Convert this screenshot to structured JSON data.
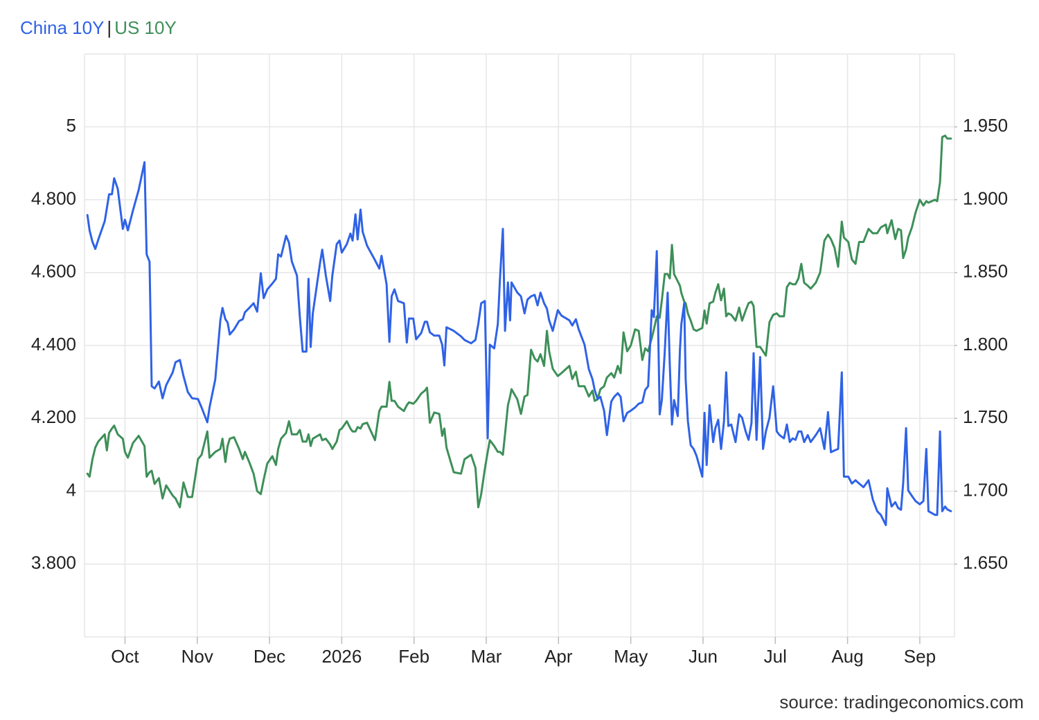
{
  "chart_data": {
    "type": "line",
    "source": "source: tradingeconomics.com",
    "legend_separator": "|",
    "xlim": [
      0.44,
      12.48
    ],
    "xticks": [
      {
        "value": 1,
        "label": "Oct"
      },
      {
        "value": 2,
        "label": "Nov"
      },
      {
        "value": 3,
        "label": "Dec"
      },
      {
        "value": 4,
        "label": "2026"
      },
      {
        "value": 5,
        "label": "Feb"
      },
      {
        "value": 6,
        "label": "Mar"
      },
      {
        "value": 7,
        "label": "Apr"
      },
      {
        "value": 8,
        "label": "May"
      },
      {
        "value": 9,
        "label": "Jun"
      },
      {
        "value": 10,
        "label": "Jul"
      },
      {
        "value": 11,
        "label": "Aug"
      },
      {
        "value": 12,
        "label": "Sep"
      }
    ],
    "ylim": [
      3.6,
      5.2
    ],
    "yticks": [
      {
        "value": 3.8,
        "label": "3.800"
      },
      4,
      {
        "value": 4.2,
        "label": "4.200"
      },
      {
        "value": 4.4,
        "label": "4.400"
      },
      {
        "value": 4.6,
        "label": "4.600"
      },
      {
        "value": 4.8,
        "label": "4.800"
      },
      5
    ],
    "y2lim": [
      1.6,
      2.0
    ],
    "y2ticks": [
      {
        "value": 1.65,
        "label": "1.650"
      },
      {
        "value": 1.7,
        "label": "1.700"
      },
      {
        "value": 1.75,
        "label": "1.750"
      },
      {
        "value": 1.8,
        "label": "1.800"
      },
      {
        "value": 1.85,
        "label": "1.850"
      },
      {
        "value": 1.9,
        "label": "1.900"
      },
      {
        "value": 1.95,
        "label": "1.950"
      }
    ],
    "grid": true,
    "x": [
      0.48,
      0.51,
      0.55,
      0.59,
      0.63,
      0.72,
      0.75,
      0.78,
      0.82,
      0.85,
      0.9,
      0.97,
      1.0,
      1.04,
      1.11,
      1.19,
      1.27,
      1.3,
      1.34,
      1.37,
      1.41,
      1.47,
      1.52,
      1.57,
      1.66,
      1.7,
      1.76,
      1.81,
      1.87,
      1.93,
      2.01,
      2.06,
      2.14,
      2.17,
      2.25,
      2.32,
      2.35,
      2.39,
      2.42,
      2.45,
      2.51,
      2.58,
      2.63,
      2.66,
      2.72,
      2.78,
      2.83,
      2.88,
      2.92,
      2.97,
      3.04,
      3.09,
      3.12,
      3.16,
      3.23,
      3.27,
      3.31,
      3.38,
      3.42,
      3.46,
      3.51,
      3.54,
      3.57,
      3.6,
      3.7,
      3.73,
      3.78,
      3.84,
      3.87,
      3.93,
      3.97,
      4.0,
      4.07,
      4.12,
      4.15,
      4.19,
      4.22,
      4.26,
      4.29,
      4.35,
      4.46,
      4.52,
      4.55,
      4.62,
      4.66,
      4.69,
      4.73,
      4.78,
      4.86,
      4.9,
      4.93,
      4.99,
      5.03,
      5.1,
      5.15,
      5.18,
      5.22,
      5.28,
      5.35,
      5.39,
      5.42,
      5.45,
      5.55,
      5.65,
      5.7,
      5.79,
      5.85,
      5.89,
      5.93,
      5.98,
      6.02,
      6.05,
      6.11,
      6.16,
      6.19,
      6.23,
      6.26,
      6.3,
      6.33,
      6.35,
      6.43,
      6.48,
      6.53,
      6.57,
      6.62,
      6.67,
      6.71,
      6.75,
      6.8,
      6.84,
      6.87,
      6.92,
      6.99,
      7.04,
      7.15,
      7.19,
      7.24,
      7.28,
      7.36,
      7.42,
      7.47,
      7.5,
      7.54,
      7.58,
      7.63,
      7.67,
      7.73,
      7.77,
      7.82,
      7.86,
      7.9,
      7.95,
      8.0,
      8.06,
      8.11,
      8.16,
      8.2,
      8.24,
      8.29,
      8.32,
      8.36,
      8.4,
      8.43,
      8.47,
      8.51,
      8.54,
      8.57,
      8.6,
      8.65,
      8.68,
      8.7,
      8.74,
      8.76,
      8.79,
      8.83,
      8.87,
      8.91,
      8.99,
      9.02,
      9.05,
      9.09,
      9.14,
      9.17,
      9.21,
      9.25,
      9.29,
      9.32,
      9.35,
      9.39,
      9.45,
      9.5,
      9.54,
      9.59,
      9.63,
      9.67,
      9.7,
      9.74,
      9.79,
      9.83,
      9.87,
      9.92,
      9.97,
      10.02,
      10.06,
      10.12,
      10.16,
      10.2,
      10.24,
      10.28,
      10.32,
      10.36,
      10.4,
      10.45,
      10.49,
      10.56,
      10.62,
      10.68,
      10.73,
      10.77,
      10.82,
      10.87,
      10.92,
      10.95,
      11.01,
      11.06,
      11.11,
      11.16,
      11.22,
      11.29,
      11.35,
      11.41,
      11.46,
      11.53,
      11.55,
      11.61,
      11.66,
      11.7,
      11.74,
      11.77,
      11.81,
      11.84,
      11.89,
      11.94,
      12.0,
      12.05,
      12.09,
      12.12,
      12.21,
      12.24,
      12.28,
      12.31,
      12.35,
      12.38,
      12.43
    ],
    "series": [
      {
        "name": "China 10Y",
        "color": "#2f62e6",
        "axis": "y",
        "values": [
          4.758,
          4.716,
          4.684,
          4.665,
          4.69,
          4.741,
          4.777,
          4.815,
          4.815,
          4.859,
          4.83,
          4.72,
          4.745,
          4.716,
          4.77,
          4.827,
          4.903,
          4.65,
          4.63,
          4.288,
          4.282,
          4.301,
          4.255,
          4.291,
          4.326,
          4.354,
          4.36,
          4.316,
          4.272,
          4.255,
          4.253,
          4.23,
          4.189,
          4.23,
          4.307,
          4.469,
          4.503,
          4.472,
          4.463,
          4.43,
          4.444,
          4.467,
          4.472,
          4.491,
          4.503,
          4.516,
          4.493,
          4.598,
          4.53,
          4.554,
          4.57,
          4.583,
          4.65,
          4.644,
          4.701,
          4.682,
          4.63,
          4.592,
          4.478,
          4.383,
          4.383,
          4.583,
          4.396,
          4.488,
          4.627,
          4.663,
          4.592,
          4.522,
          4.592,
          4.678,
          4.688,
          4.655,
          4.678,
          4.707,
          4.688,
          4.76,
          4.691,
          4.773,
          4.712,
          4.674,
          4.634,
          4.611,
          4.646,
          4.568,
          4.41,
          4.535,
          4.554,
          4.522,
          4.516,
          4.408,
          4.474,
          4.474,
          4.417,
          4.434,
          4.465,
          4.465,
          4.436,
          4.427,
          4.427,
          4.402,
          4.345,
          4.45,
          4.44,
          4.425,
          4.415,
          4.406,
          4.415,
          4.459,
          4.516,
          4.522,
          4.145,
          4.402,
          4.392,
          4.459,
          4.583,
          4.72,
          4.44,
          4.573,
          4.469,
          4.573,
          4.545,
          4.535,
          4.488,
          4.526,
          4.535,
          4.539,
          4.51,
          4.545,
          4.516,
          4.501,
          4.469,
          4.44,
          4.497,
          4.482,
          4.469,
          4.455,
          4.472,
          4.444,
          4.402,
          4.335,
          4.307,
          4.278,
          4.253,
          4.259,
          4.221,
          4.154,
          4.246,
          4.259,
          4.269,
          4.259,
          4.192,
          4.215,
          4.221,
          4.23,
          4.24,
          4.244,
          4.278,
          4.288,
          4.497,
          4.478,
          4.659,
          4.211,
          4.25,
          4.383,
          4.545,
          4.345,
          4.183,
          4.25,
          4.206,
          4.387,
          4.459,
          4.516,
          4.307,
          4.192,
          4.126,
          4.116,
          4.097,
          4.04,
          4.215,
          4.072,
          4.236,
          4.135,
          4.173,
          4.196,
          4.116,
          4.192,
          4.326,
          4.179,
          4.183,
          4.135,
          4.211,
          4.202,
          4.164,
          4.141,
          4.187,
          4.379,
          4.141,
          4.368,
          4.116,
          4.164,
          4.202,
          4.288,
          4.164,
          4.154,
          4.145,
          4.183,
          4.135,
          4.145,
          4.141,
          4.164,
          4.164,
          4.135,
          4.154,
          4.135,
          4.154,
          4.173,
          4.116,
          4.217,
          4.107,
          4.112,
          4.116,
          4.326,
          4.04,
          4.04,
          4.021,
          4.03,
          4.021,
          4.011,
          4.03,
          3.977,
          3.945,
          3.935,
          3.907,
          4.008,
          3.958,
          3.97,
          3.954,
          3.949,
          4.021,
          4.173,
          4.002,
          3.987,
          3.973,
          3.964,
          3.973,
          4.116,
          3.945,
          3.935,
          3.935,
          4.164,
          3.945,
          3.958,
          3.95,
          3.945
        ]
      },
      {
        "name": "US 10Y",
        "color": "#3d8f58",
        "axis": "y2",
        "values": [
          1.712,
          1.71,
          1.722,
          1.73,
          1.734,
          1.739,
          1.728,
          1.74,
          1.743,
          1.745,
          1.739,
          1.736,
          1.727,
          1.723,
          1.733,
          1.738,
          1.731,
          1.71,
          1.713,
          1.714,
          1.705,
          1.709,
          1.695,
          1.704,
          1.697,
          1.695,
          1.689,
          1.706,
          1.696,
          1.696,
          1.722,
          1.725,
          1.741,
          1.723,
          1.727,
          1.729,
          1.736,
          1.72,
          1.731,
          1.736,
          1.737,
          1.729,
          1.722,
          1.727,
          1.72,
          1.712,
          1.7,
          1.698,
          1.708,
          1.719,
          1.724,
          1.718,
          1.729,
          1.736,
          1.74,
          1.748,
          1.739,
          1.739,
          1.742,
          1.734,
          1.734,
          1.739,
          1.731,
          1.736,
          1.739,
          1.735,
          1.736,
          1.732,
          1.729,
          1.734,
          1.742,
          1.743,
          1.748,
          1.743,
          1.741,
          1.741,
          1.744,
          1.743,
          1.746,
          1.747,
          1.735,
          1.755,
          1.758,
          1.758,
          1.775,
          1.762,
          1.762,
          1.758,
          1.755,
          1.759,
          1.761,
          1.76,
          1.762,
          1.767,
          1.769,
          1.771,
          1.747,
          1.754,
          1.753,
          1.738,
          1.743,
          1.73,
          1.713,
          1.712,
          1.722,
          1.725,
          1.716,
          1.689,
          1.698,
          1.715,
          1.727,
          1.735,
          1.731,
          1.727,
          1.727,
          1.725,
          1.739,
          1.759,
          1.765,
          1.77,
          1.763,
          1.753,
          1.765,
          1.766,
          1.797,
          1.791,
          1.789,
          1.794,
          1.786,
          1.81,
          1.796,
          1.784,
          1.779,
          1.781,
          1.786,
          1.777,
          1.782,
          1.772,
          1.772,
          1.765,
          1.769,
          1.762,
          1.763,
          1.77,
          1.772,
          1.778,
          1.781,
          1.778,
          1.786,
          1.781,
          1.809,
          1.796,
          1.8,
          1.811,
          1.81,
          1.79,
          1.798,
          1.796,
          1.805,
          1.811,
          1.82,
          1.819,
          1.831,
          1.849,
          1.849,
          1.846,
          1.869,
          1.849,
          1.844,
          1.841,
          1.836,
          1.83,
          1.829,
          1.822,
          1.817,
          1.811,
          1.81,
          1.812,
          1.824,
          1.815,
          1.829,
          1.83,
          1.836,
          1.842,
          1.831,
          1.839,
          1.82,
          1.822,
          1.821,
          1.817,
          1.826,
          1.817,
          1.824,
          1.829,
          1.83,
          1.827,
          1.799,
          1.799,
          1.796,
          1.793,
          1.816,
          1.821,
          1.822,
          1.82,
          1.82,
          1.84,
          1.843,
          1.842,
          1.842,
          1.846,
          1.856,
          1.843,
          1.841,
          1.839,
          1.843,
          1.85,
          1.872,
          1.876,
          1.873,
          1.867,
          1.854,
          1.885,
          1.874,
          1.871,
          1.859,
          1.856,
          1.871,
          1.871,
          1.88,
          1.877,
          1.877,
          1.881,
          1.883,
          1.877,
          1.886,
          1.873,
          1.88,
          1.879,
          1.86,
          1.866,
          1.874,
          1.881,
          1.891,
          1.9,
          1.896,
          1.899,
          1.898,
          1.9,
          1.899,
          1.912,
          1.943,
          1.944,
          1.942,
          1.942
        ]
      }
    ]
  }
}
